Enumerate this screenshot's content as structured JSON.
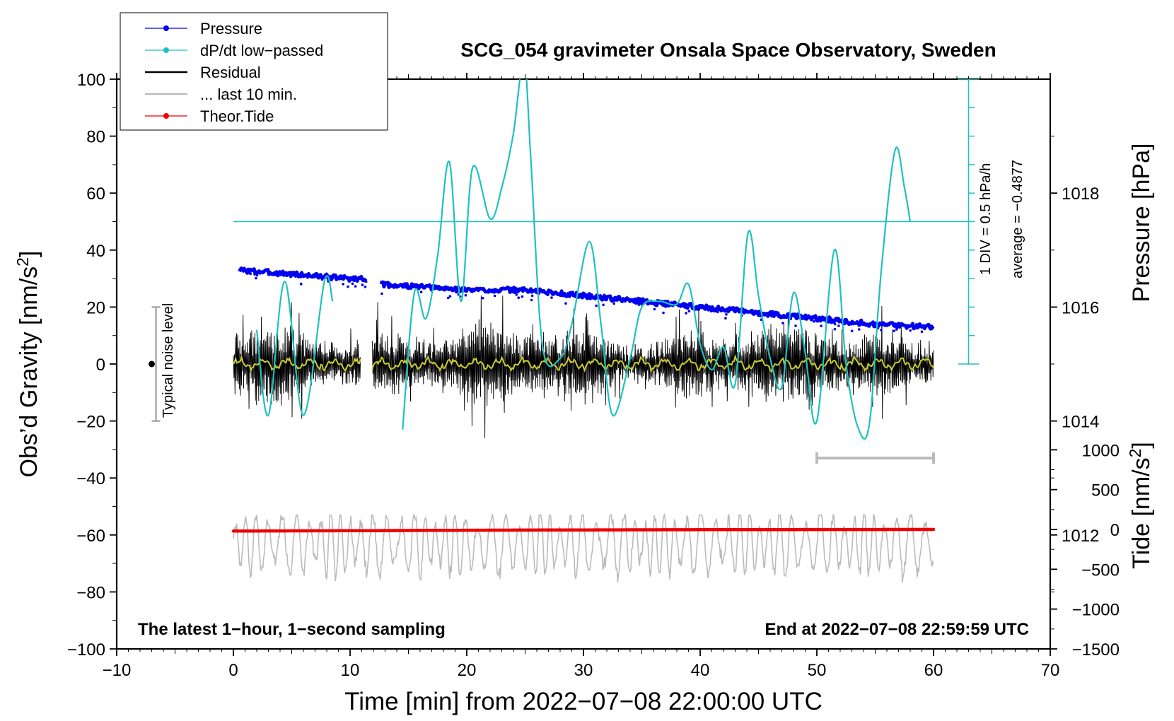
{
  "chart_data": {
    "type": "line",
    "title": "SCG_054 gravimeter Onsala Space Observatory, Sweden",
    "xlabel": "Time [min] from 2022−07−08 22:00:00 UTC",
    "ylabel_left": "Obs’d Gravity [nm/s²]",
    "ylabel_right_top": "Pressure [hPa]",
    "ylabel_right_bottom": "Tide [nm/s²]",
    "xlim": [
      -10,
      70
    ],
    "ylim": [
      -100,
      100
    ],
    "pressure_lim": [
      1010,
      1020
    ],
    "tide_lim": [
      -1500,
      1500
    ],
    "x_ticks": [
      -10,
      0,
      10,
      20,
      30,
      40,
      50,
      60,
      70
    ],
    "y_ticks": [
      -100,
      -80,
      -60,
      -40,
      -20,
      0,
      20,
      40,
      60,
      80,
      100
    ],
    "pressure_ticks": [
      1012,
      1014,
      1016,
      1018
    ],
    "tide_ticks": [
      -1500,
      -1000,
      -500,
      0,
      500,
      1000
    ],
    "legend": [
      {
        "label": "Pressure",
        "color": "#0000ee",
        "marker": true
      },
      {
        "label": "dP/dt low−passed",
        "color": "#20c0c0",
        "marker": true
      },
      {
        "label": "Residual",
        "color": "#000000",
        "marker": false
      },
      {
        "label": "... last 10 min.",
        "color": "#bbbbbb",
        "marker": false
      },
      {
        "label": "Theor.Tide",
        "color": "#ee0000",
        "marker": true
      }
    ],
    "series": [
      {
        "name": "Pressure",
        "unit": "hPa",
        "color": "#0000ee",
        "gaps": [
          [
            11.5,
            12.5
          ]
        ],
        "x": [
          0.5,
          10,
          11.5,
          12.5,
          20,
          25,
          30,
          40,
          50,
          55,
          60
        ],
        "values": [
          1016.65,
          1016.5,
          1016.5,
          1016.4,
          1016.3,
          1016.3,
          1016.2,
          1016.0,
          1015.8,
          1015.7,
          1015.65
        ]
      },
      {
        "name": "dP/dt low-passed",
        "unit": "DIV (1 DIV = 0.5 hPa/h, zero at 50 nm/s²)",
        "color": "#20c0c0",
        "gaps": [
          [
            8.5,
            14.5
          ]
        ],
        "x": [
          2,
          3,
          4.4,
          6,
          7.8,
          8.5,
          14.5,
          15.5,
          16.5,
          17.5,
          18.5,
          19.5,
          20.5,
          22,
          23,
          24,
          24.9,
          25.5,
          26.5,
          28,
          29,
          30.5,
          31.5,
          32.5,
          34,
          35,
          36.5,
          38,
          39,
          40,
          41,
          42,
          43,
          44.1,
          45,
          46,
          47,
          48,
          49,
          50,
          51.5,
          52.5,
          53.5,
          54.5,
          55.5,
          56.7,
          57.5,
          58
        ],
        "values": [
          -3.8,
          -6.8,
          -2.1,
          -6.8,
          -2.1,
          -2.8,
          -7.3,
          -2.5,
          -3.4,
          -1.2,
          2.1,
          -2.8,
          1.9,
          0.1,
          1.2,
          3.1,
          5.7,
          2.1,
          -4.4,
          -4.8,
          -3.6,
          -0.7,
          -3.6,
          -6.8,
          -4.8,
          -3.0,
          -2.8,
          -2.9,
          -2.2,
          -4.3,
          -5.2,
          -4.4,
          -5.7,
          -0.4,
          -2.6,
          -4.8,
          -5.8,
          -2.5,
          -4.6,
          -7.0,
          -1.0,
          -5.0,
          -7.2,
          -7.1,
          -1.8,
          2.5,
          1.2,
          0.0
        ]
      },
      {
        "name": "Residual",
        "unit": "nm/s²",
        "color": "#000000",
        "gaps": [
          [
            10.9,
            11.9
          ]
        ],
        "x_range": [
          0,
          60
        ],
        "y_range": [
          -26,
          24
        ]
      },
      {
        "name": "Residual smoothed",
        "unit": "nm/s²",
        "color": "#cccc30",
        "x_range": [
          0,
          60
        ],
        "y_range": [
          -3,
          3
        ]
      },
      {
        "name": "... last 10 min.",
        "unit": "nm/s²",
        "color": "#bbbbbb",
        "x_range": [
          0,
          60
        ],
        "y_range": [
          -78,
          -53
        ],
        "center": -63
      },
      {
        "name": "Theor.Tide",
        "unit": "nm/s²",
        "color": "#ee0000",
        "x": [
          0,
          10,
          20,
          30,
          40,
          50,
          60
        ],
        "values": [
          -20,
          -16,
          -10,
          -6,
          -3,
          -1,
          0
        ]
      }
    ],
    "annotations": {
      "noise_label": "Typical noise level",
      "noise_range": [
        -20,
        20
      ],
      "noise_x": -7,
      "dpdt_scale": "1 DIV = 0.5 hPa/h",
      "dpdt_average": "average = −0.4877",
      "dpdt_zero": 50,
      "dpdt_scale_x": 63,
      "dpdt_scale_range": [
        0,
        100
      ],
      "last10_bracket": [
        50,
        60
      ],
      "last10_bracket_y": -33,
      "bottom_left": "The latest 1−hour, 1−second sampling",
      "bottom_right": "End at 2022−07−08 22:59:59 UTC"
    }
  }
}
